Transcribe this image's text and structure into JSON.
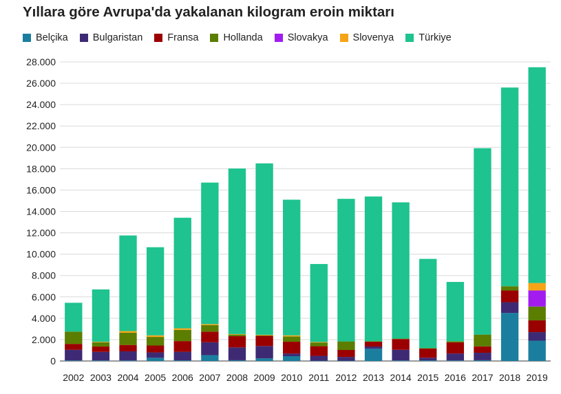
{
  "chart_data": {
    "type": "bar",
    "stacked": true,
    "title": "Yıllara göre Avrupa'da yakalanan kilogram eroin miktarı",
    "categories": [
      "2002",
      "2003",
      "2004",
      "2005",
      "2006",
      "2007",
      "2008",
      "2009",
      "2010",
      "2011",
      "2012",
      "2013",
      "2014",
      "2015",
      "2016",
      "2017",
      "2018",
      "2019"
    ],
    "series": [
      {
        "name": "Belçika",
        "color": "#1b7e9e",
        "values": [
          50,
          50,
          50,
          300,
          60,
          550,
          70,
          250,
          450,
          30,
          30,
          1150,
          50,
          60,
          50,
          70,
          4500,
          1900
        ]
      },
      {
        "name": "Bulgaristan",
        "color": "#3e2a74",
        "values": [
          1000,
          800,
          850,
          500,
          800,
          1200,
          1200,
          1150,
          250,
          450,
          350,
          200,
          1000,
          250,
          650,
          700,
          1000,
          800
        ]
      },
      {
        "name": "Fransa",
        "color": "#9b0000",
        "values": [
          550,
          500,
          600,
          650,
          1000,
          1000,
          1050,
          950,
          1100,
          900,
          650,
          450,
          1000,
          850,
          1050,
          600,
          1100,
          1100
        ]
      },
      {
        "name": "Hollanda",
        "color": "#5b7d00",
        "values": [
          1150,
          400,
          1150,
          800,
          1050,
          600,
          150,
          50,
          500,
          350,
          800,
          50,
          50,
          50,
          100,
          1100,
          400,
          1300
        ]
      },
      {
        "name": "Slovakya",
        "color": "#a21cf0",
        "values": [
          0,
          0,
          0,
          0,
          0,
          0,
          0,
          0,
          0,
          0,
          0,
          0,
          0,
          0,
          0,
          0,
          0,
          1500
        ]
      },
      {
        "name": "Slovenya",
        "color": "#f4a416",
        "values": [
          0,
          50,
          150,
          150,
          150,
          100,
          50,
          50,
          100,
          50,
          0,
          0,
          0,
          0,
          0,
          0,
          0,
          700
        ]
      },
      {
        "name": "Türkiye",
        "color": "#1ec38f",
        "values": [
          2700,
          4900,
          8950,
          8250,
          10350,
          13250,
          15500,
          16050,
          12700,
          7300,
          13350,
          13550,
          12750,
          8350,
          5550,
          17450,
          18600,
          20200
        ]
      }
    ],
    "ylim": [
      0,
      28000
    ],
    "yticks": [
      "0",
      "2.000",
      "4.000",
      "6.000",
      "8.000",
      "10.000",
      "12.000",
      "14.000",
      "16.000",
      "18.000",
      "20.000",
      "22.000",
      "24.000",
      "26.000",
      "28.000"
    ],
    "grid": true,
    "legend": "top"
  }
}
